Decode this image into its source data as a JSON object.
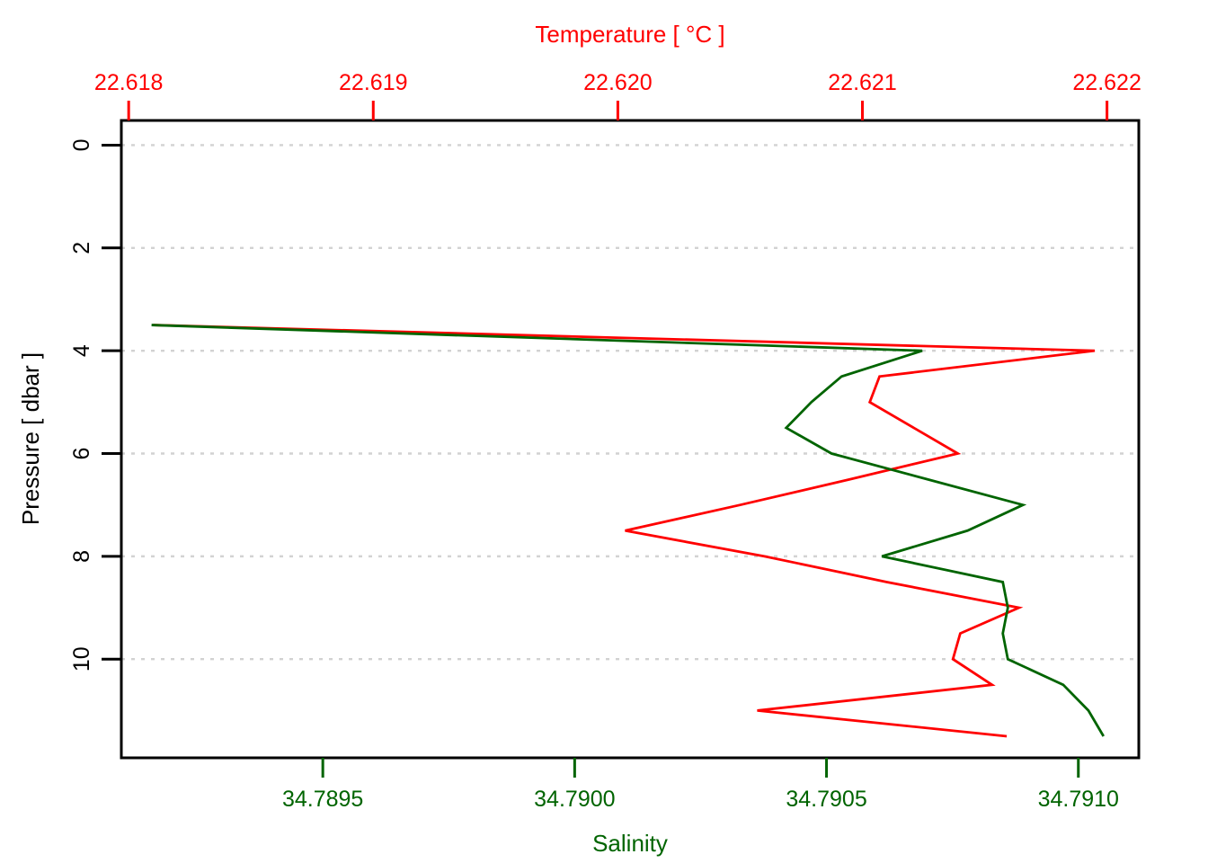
{
  "chart_data": {
    "type": "line",
    "description": "Ocean CTD profile plot: temperature (red, top axis) and salinity (dark green, bottom axis) versus pressure (left axis, increasing downward). Dotted horizontal gridlines at each pressure tick.",
    "background_color": "#ffffff",
    "y_axis": {
      "label": "Pressure [ dbar ]",
      "color": "#000000",
      "side": "left",
      "increases": "downward",
      "range": [
        -0.48,
        11.92
      ],
      "ticks": [
        {
          "value": 0,
          "label": "0"
        },
        {
          "value": 2,
          "label": "2"
        },
        {
          "value": 4,
          "label": "4"
        },
        {
          "value": 6,
          "label": "6"
        },
        {
          "value": 8,
          "label": "8"
        },
        {
          "value": 10,
          "label": "10"
        }
      ]
    },
    "x_axis_top": {
      "label": "Temperature [ °C ]",
      "color": "#ff0000",
      "range": [
        22.61797,
        22.62213
      ],
      "ticks": [
        {
          "value": 22.618,
          "label": "22.618"
        },
        {
          "value": 22.619,
          "label": "22.619"
        },
        {
          "value": 22.62,
          "label": "22.620"
        },
        {
          "value": 22.621,
          "label": "22.621"
        },
        {
          "value": 22.622,
          "label": "22.622"
        }
      ]
    },
    "x_axis_bottom": {
      "label": "Salinity",
      "color": "#006400",
      "range": [
        34.7891,
        34.79112
      ],
      "ticks": [
        {
          "value": 34.7895,
          "label": "34.7895"
        },
        {
          "value": 34.79,
          "label": "34.7900"
        },
        {
          "value": 34.7905,
          "label": "34.7905"
        },
        {
          "value": 34.791,
          "label": "34.7910"
        }
      ]
    },
    "grid": {
      "horizontal_at": [
        0,
        2,
        4,
        6,
        8,
        10
      ],
      "style": "dotted",
      "color": "#d2d2d2"
    },
    "series": [
      {
        "name": "temperature",
        "color": "#ff0000",
        "x_axis": "top",
        "pressure": [
          3.5,
          4.0,
          4.5,
          5.0,
          5.5,
          6.0,
          6.5,
          7.0,
          7.5,
          8.0,
          8.5,
          9.0,
          9.5,
          10.0,
          10.5,
          11.0,
          11.5
        ],
        "values": [
          22.6181,
          22.62195,
          22.62107,
          22.62103,
          22.62121,
          22.62139,
          22.62095,
          22.6205,
          22.62003,
          22.6206,
          22.6211,
          22.62164,
          22.6214,
          22.62137,
          22.62153,
          22.62057,
          22.62159
        ]
      },
      {
        "name": "salinity",
        "color": "#006400",
        "x_axis": "bottom",
        "pressure": [
          3.5,
          4.0,
          4.5,
          5.0,
          5.5,
          6.0,
          6.5,
          7.0,
          7.5,
          8.0,
          8.5,
          9.0,
          9.5,
          10.0,
          10.5,
          11.0,
          11.5
        ],
        "values": [
          34.78916,
          34.79069,
          34.79053,
          34.79047,
          34.79042,
          34.79051,
          34.7907,
          34.79089,
          34.79078,
          34.79061,
          34.79085,
          34.79086,
          34.79085,
          34.79086,
          34.79097,
          34.79102,
          34.79105
        ]
      }
    ]
  }
}
